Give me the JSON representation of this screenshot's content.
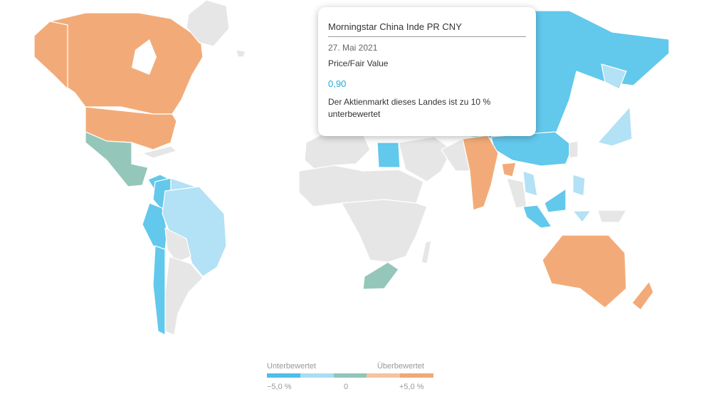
{
  "tooltip": {
    "title": "Morningstar China Inde PR CNY",
    "date": "27. Mai 2021",
    "metric": "Price/Fair Value",
    "value": "0,90",
    "description": "Der Aktienmarkt dieses Landes ist zu 10 % unterbewertet",
    "value_color": "#2aa8d8"
  },
  "legend": {
    "left_label": "Unterbewertet",
    "right_label": "Überbewertet",
    "tick_left": "−5,0 %",
    "tick_mid": "0",
    "tick_right": "+5,0 %",
    "scale_colors": [
      "#4dbfe8",
      "#a9ddf4",
      "#8fc6b8",
      "#f5c3a0",
      "#f0a878"
    ]
  },
  "colors": {
    "land_grey": "#e6e6e6",
    "strong_under": "#62c8ec",
    "mild_under": "#b3e1f5",
    "neutral": "#94c7b9",
    "over": "#f2ab78"
  }
}
